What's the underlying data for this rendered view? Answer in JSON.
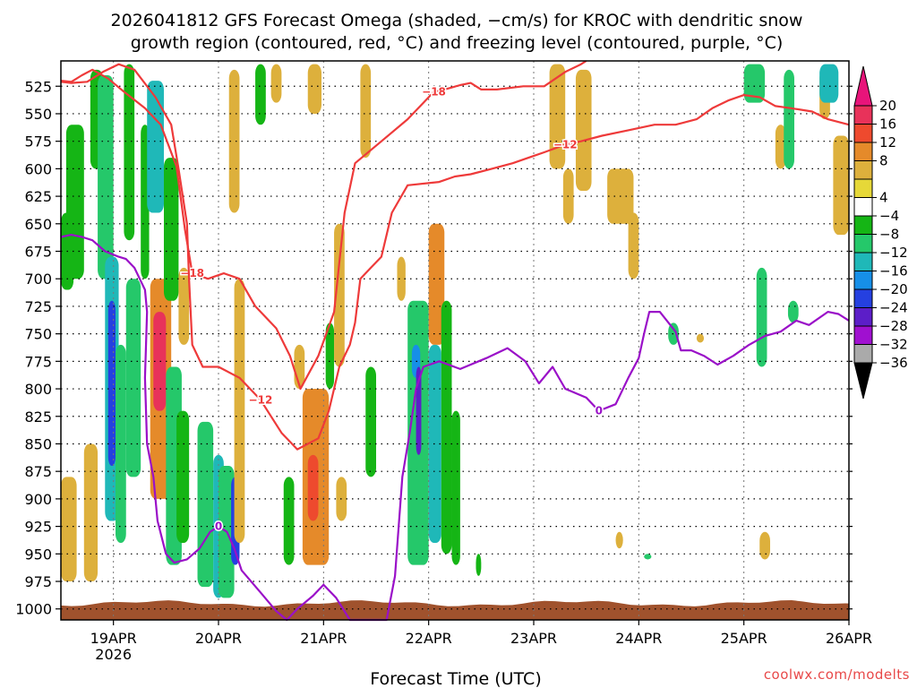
{
  "title": {
    "line1": "2026041812 GFS Forecast Omega (shaded, −cm/s) for KROC with dendritic snow",
    "line2": "growth region (contoured, red, °C) and freezing level (contoured, purple, °C)"
  },
  "watermark": "coolwx.com/modelts",
  "chart_data": {
    "type": "heatmap",
    "xlabel": "Forecast Time (UTC)",
    "x_ticks": [
      {
        "label": "19APR",
        "sub": "2026",
        "day": 19
      },
      {
        "label": "20APR",
        "sub": "",
        "day": 20
      },
      {
        "label": "21APR",
        "sub": "",
        "day": 21
      },
      {
        "label": "22APR",
        "sub": "",
        "day": 22
      },
      {
        "label": "23APR",
        "sub": "",
        "day": 23
      },
      {
        "label": "24APR",
        "sub": "",
        "day": 24
      },
      {
        "label": "25APR",
        "sub": "",
        "day": 25
      },
      {
        "label": "26APR",
        "sub": "",
        "day": 26
      }
    ],
    "xlim_days": [
      18.5,
      26.0
    ],
    "ylim_hPa": [
      1010,
      502
    ],
    "y_ticks": [
      "525",
      "550",
      "575",
      "600",
      "625",
      "650",
      "675",
      "700",
      "725",
      "750",
      "775",
      "800",
      "825",
      "850",
      "875",
      "900",
      "925",
      "950",
      "975",
      "1000"
    ],
    "grid": true,
    "colorbar": {
      "levels": [
        "20",
        "16",
        "12",
        "8",
        "4",
        "−4",
        "−8",
        "−12",
        "−16",
        "−20",
        "−24",
        "−28",
        "−32",
        "−36"
      ],
      "colors": [
        "#e8325a",
        "#ee4a2e",
        "#e58a2a",
        "#ddb03c",
        "#e6d838",
        "#ffffff",
        "#15b515",
        "#25c86a",
        "#1fb8b8",
        "#168fe8",
        "#2540e0",
        "#5c1ec8",
        "#a010d0",
        "#aaaaaa"
      ],
      "top_arrow_color": "#e8147a",
      "bottom_arrow_color": "#000000"
    },
    "contours": [
      {
        "name": "-18",
        "color": "#ee3a3a",
        "label": "−18",
        "points": [
          [
            18.5,
            520
          ],
          [
            18.6,
            521
          ],
          [
            18.7,
            515
          ],
          [
            18.8,
            510
          ],
          [
            18.95,
            518
          ],
          [
            19.1,
            530
          ],
          [
            19.3,
            545
          ],
          [
            19.45,
            560
          ],
          [
            19.6,
            598
          ],
          [
            19.68,
            655
          ],
          [
            19.75,
            695
          ],
          [
            19.9,
            700
          ],
          [
            20.05,
            695
          ],
          [
            20.2,
            700
          ],
          [
            20.35,
            725
          ],
          [
            20.55,
            745
          ],
          [
            20.68,
            770
          ],
          [
            20.78,
            800
          ],
          [
            20.95,
            770
          ],
          [
            21.1,
            730
          ],
          [
            21.2,
            640
          ],
          [
            21.3,
            595
          ],
          [
            21.55,
            575
          ],
          [
            21.8,
            555
          ],
          [
            21.95,
            540
          ],
          [
            22.05,
            530
          ],
          [
            22.15,
            528
          ],
          [
            22.3,
            524
          ],
          [
            22.4,
            522
          ],
          [
            22.5,
            528
          ],
          [
            22.65,
            528
          ],
          [
            22.9,
            525
          ],
          [
            23.1,
            525
          ],
          [
            23.3,
            512
          ],
          [
            23.45,
            505
          ],
          [
            23.5,
            502
          ]
        ]
      },
      {
        "name": "-12",
        "color": "#ee3a3a",
        "label": "−12",
        "points": [
          [
            18.5,
            521
          ],
          [
            18.6,
            522
          ],
          [
            18.75,
            521
          ],
          [
            18.9,
            512
          ],
          [
            19.05,
            505
          ],
          [
            19.2,
            510
          ],
          [
            19.4,
            535
          ],
          [
            19.55,
            560
          ],
          [
            19.62,
            600
          ],
          [
            19.7,
            650
          ],
          [
            19.72,
            700
          ],
          [
            19.75,
            760
          ],
          [
            19.85,
            780
          ],
          [
            20.0,
            780
          ],
          [
            20.2,
            790
          ],
          [
            20.4,
            810
          ],
          [
            20.6,
            840
          ],
          [
            20.75,
            855
          ],
          [
            20.95,
            845
          ],
          [
            21.05,
            820
          ],
          [
            21.15,
            780
          ],
          [
            21.25,
            760
          ],
          [
            21.3,
            740
          ],
          [
            21.35,
            700
          ],
          [
            21.45,
            690
          ],
          [
            21.55,
            680
          ],
          [
            21.65,
            640
          ],
          [
            21.8,
            615
          ],
          [
            22.1,
            612
          ],
          [
            22.25,
            607
          ],
          [
            22.4,
            605
          ],
          [
            22.6,
            600
          ],
          [
            22.8,
            595
          ],
          [
            22.95,
            590
          ],
          [
            23.1,
            585
          ],
          [
            23.3,
            578
          ],
          [
            23.45,
            575
          ],
          [
            23.65,
            570
          ],
          [
            23.9,
            565
          ],
          [
            24.15,
            560
          ],
          [
            24.35,
            560
          ],
          [
            24.55,
            555
          ],
          [
            24.7,
            545
          ],
          [
            24.85,
            538
          ],
          [
            25.0,
            533
          ],
          [
            25.15,
            535
          ],
          [
            25.3,
            543
          ],
          [
            25.45,
            545
          ],
          [
            25.65,
            548
          ],
          [
            25.8,
            555
          ],
          [
            26.0,
            560
          ]
        ]
      },
      {
        "name": "0",
        "color": "#9a10c8",
        "label": "0",
        "points": [
          [
            18.5,
            662
          ],
          [
            18.6,
            660
          ],
          [
            18.7,
            662
          ],
          [
            18.8,
            665
          ],
          [
            18.92,
            675
          ],
          [
            19.05,
            680
          ],
          [
            19.12,
            682
          ],
          [
            19.2,
            690
          ],
          [
            19.25,
            700
          ],
          [
            19.3,
            710
          ],
          [
            19.32,
            730
          ],
          [
            19.3,
            790
          ],
          [
            19.32,
            850
          ],
          [
            19.38,
            880
          ],
          [
            19.42,
            920
          ],
          [
            19.5,
            950
          ],
          [
            19.58,
            958
          ],
          [
            19.7,
            955
          ],
          [
            19.82,
            945
          ],
          [
            19.92,
            930
          ],
          [
            20.0,
            925
          ],
          [
            20.08,
            930
          ],
          [
            20.15,
            945
          ],
          [
            20.22,
            965
          ],
          [
            20.4,
            985
          ],
          [
            20.55,
            1002
          ],
          [
            20.65,
            1010
          ],
          [
            20.75,
            1000
          ],
          [
            20.9,
            988
          ],
          [
            21.0,
            978
          ],
          [
            21.12,
            990
          ],
          [
            21.25,
            1010
          ],
          [
            21.6,
            1010
          ],
          [
            21.68,
            970
          ],
          [
            21.75,
            880
          ],
          [
            21.82,
            840
          ],
          [
            21.88,
            800
          ],
          [
            21.95,
            780
          ],
          [
            22.1,
            775
          ],
          [
            22.3,
            782
          ],
          [
            22.55,
            772
          ],
          [
            22.75,
            763
          ],
          [
            22.92,
            775
          ],
          [
            23.05,
            795
          ],
          [
            23.18,
            780
          ],
          [
            23.3,
            800
          ],
          [
            23.5,
            808
          ],
          [
            23.62,
            820
          ],
          [
            23.78,
            814
          ],
          [
            23.9,
            790
          ],
          [
            24.0,
            772
          ],
          [
            24.05,
            750
          ],
          [
            24.1,
            730
          ],
          [
            24.2,
            730
          ],
          [
            24.35,
            748
          ],
          [
            24.4,
            765
          ],
          [
            24.5,
            765
          ],
          [
            24.62,
            770
          ],
          [
            24.75,
            778
          ],
          [
            24.9,
            770
          ],
          [
            25.05,
            760
          ],
          [
            25.2,
            752
          ],
          [
            25.35,
            748
          ],
          [
            25.5,
            738
          ],
          [
            25.62,
            742
          ],
          [
            25.8,
            730
          ],
          [
            25.9,
            732
          ],
          [
            26.0,
            738
          ]
        ]
      }
    ],
    "omega_patches": [
      {
        "x0": 18.5,
        "x1": 18.65,
        "p0": 880,
        "p1": 975,
        "value": 6
      },
      {
        "x0": 18.5,
        "x1": 18.62,
        "p0": 640,
        "p1": 710,
        "value": -6
      },
      {
        "x0": 18.55,
        "x1": 18.72,
        "p0": 560,
        "p1": 700,
        "value": -7
      },
      {
        "x0": 18.72,
        "x1": 18.85,
        "p0": 850,
        "p1": 975,
        "value": 6
      },
      {
        "x0": 18.78,
        "x1": 18.9,
        "p0": 510,
        "p1": 600,
        "value": -7
      },
      {
        "x0": 18.85,
        "x1": 19.0,
        "p0": 515,
        "p1": 700,
        "value": -10
      },
      {
        "x0": 18.92,
        "x1": 19.05,
        "p0": 680,
        "p1": 920,
        "value": -14
      },
      {
        "x0": 18.95,
        "x1": 19.02,
        "p0": 720,
        "p1": 870,
        "value": -23
      },
      {
        "x0": 19.02,
        "x1": 19.12,
        "p0": 760,
        "p1": 940,
        "value": -10
      },
      {
        "x0": 19.1,
        "x1": 19.2,
        "p0": 505,
        "p1": 665,
        "value": -6
      },
      {
        "x0": 19.12,
        "x1": 19.26,
        "p0": 700,
        "p1": 880,
        "value": -9
      },
      {
        "x0": 19.26,
        "x1": 19.34,
        "p0": 560,
        "p1": 700,
        "value": -6
      },
      {
        "x0": 19.32,
        "x1": 19.48,
        "p0": 520,
        "p1": 640,
        "value": -14
      },
      {
        "x0": 19.35,
        "x1": 19.55,
        "p0": 700,
        "p1": 900,
        "value": 10
      },
      {
        "x0": 19.38,
        "x1": 19.5,
        "p0": 730,
        "p1": 820,
        "value": 18
      },
      {
        "x0": 19.48,
        "x1": 19.62,
        "p0": 590,
        "p1": 720,
        "value": -7
      },
      {
        "x0": 19.5,
        "x1": 19.65,
        "p0": 780,
        "p1": 960,
        "value": -9
      },
      {
        "x0": 19.6,
        "x1": 19.72,
        "p0": 820,
        "p1": 940,
        "value": -6
      },
      {
        "x0": 19.62,
        "x1": 19.72,
        "p0": 690,
        "p1": 760,
        "value": 6
      },
      {
        "x0": 19.8,
        "x1": 19.95,
        "p0": 830,
        "p1": 980,
        "value": -8
      },
      {
        "x0": 19.95,
        "x1": 20.05,
        "p0": 860,
        "p1": 990,
        "value": -12
      },
      {
        "x0": 20.0,
        "x1": 20.15,
        "p0": 870,
        "p1": 990,
        "value": -10
      },
      {
        "x0": 20.12,
        "x1": 20.2,
        "p0": 880,
        "p1": 960,
        "value": -20
      },
      {
        "x0": 20.1,
        "x1": 20.2,
        "p0": 510,
        "p1": 640,
        "value": 6
      },
      {
        "x0": 20.15,
        "x1": 20.25,
        "p0": 700,
        "p1": 940,
        "value": 6
      },
      {
        "x0": 20.35,
        "x1": 20.45,
        "p0": 505,
        "p1": 560,
        "value": -6
      },
      {
        "x0": 20.5,
        "x1": 20.6,
        "p0": 505,
        "p1": 540,
        "value": 6
      },
      {
        "x0": 20.62,
        "x1": 20.72,
        "p0": 880,
        "p1": 960,
        "value": -6
      },
      {
        "x0": 20.72,
        "x1": 20.82,
        "p0": 760,
        "p1": 800,
        "value": 6
      },
      {
        "x0": 20.85,
        "x1": 20.98,
        "p0": 505,
        "p1": 550,
        "value": 6
      },
      {
        "x0": 20.8,
        "x1": 21.05,
        "p0": 800,
        "p1": 960,
        "value": 10
      },
      {
        "x0": 20.85,
        "x1": 20.95,
        "p0": 860,
        "p1": 920,
        "value": 14
      },
      {
        "x0": 21.02,
        "x1": 21.1,
        "p0": 740,
        "p1": 800,
        "value": -6
      },
      {
        "x0": 21.1,
        "x1": 21.2,
        "p0": 650,
        "p1": 780,
        "value": 6
      },
      {
        "x0": 21.12,
        "x1": 21.22,
        "p0": 880,
        "p1": 920,
        "value": 6
      },
      {
        "x0": 21.35,
        "x1": 21.45,
        "p0": 505,
        "p1": 590,
        "value": 6
      },
      {
        "x0": 21.4,
        "x1": 21.5,
        "p0": 780,
        "p1": 880,
        "value": -6
      },
      {
        "x0": 21.7,
        "x1": 21.78,
        "p0": 680,
        "p1": 720,
        "value": 6
      },
      {
        "x0": 21.8,
        "x1": 22.0,
        "p0": 720,
        "p1": 960,
        "value": -10
      },
      {
        "x0": 21.84,
        "x1": 21.92,
        "p0": 760,
        "p1": 790,
        "value": -18
      },
      {
        "x0": 21.88,
        "x1": 21.93,
        "p0": 780,
        "p1": 860,
        "value": -26
      },
      {
        "x0": 22.0,
        "x1": 22.15,
        "p0": 650,
        "p1": 760,
        "value": 10
      },
      {
        "x0": 22.0,
        "x1": 22.12,
        "p0": 760,
        "p1": 940,
        "value": -14
      },
      {
        "x0": 22.12,
        "x1": 22.22,
        "p0": 720,
        "p1": 950,
        "value": -7
      },
      {
        "x0": 22.22,
        "x1": 22.3,
        "p0": 820,
        "p1": 960,
        "value": -6
      },
      {
        "x0": 22.45,
        "x1": 22.5,
        "p0": 950,
        "p1": 970,
        "value": -6
      },
      {
        "x0": 23.15,
        "x1": 23.3,
        "p0": 505,
        "p1": 600,
        "value": 6
      },
      {
        "x0": 23.28,
        "x1": 23.38,
        "p0": 600,
        "p1": 650,
        "value": 6
      },
      {
        "x0": 23.4,
        "x1": 23.55,
        "p0": 510,
        "p1": 620,
        "value": 6
      },
      {
        "x0": 23.7,
        "x1": 23.95,
        "p0": 600,
        "p1": 650,
        "value": 6
      },
      {
        "x0": 23.9,
        "x1": 24.0,
        "p0": 640,
        "p1": 700,
        "value": 6
      },
      {
        "x0": 23.78,
        "x1": 23.85,
        "p0": 930,
        "p1": 945,
        "value": 6
      },
      {
        "x0": 24.05,
        "x1": 24.12,
        "p0": 950,
        "p1": 955,
        "value": -8
      },
      {
        "x0": 24.28,
        "x1": 24.38,
        "p0": 740,
        "p1": 760,
        "value": -8
      },
      {
        "x0": 24.55,
        "x1": 24.62,
        "p0": 750,
        "p1": 758,
        "value": 6
      },
      {
        "x0": 25.0,
        "x1": 25.2,
        "p0": 505,
        "p1": 540,
        "value": -8
      },
      {
        "x0": 25.12,
        "x1": 25.22,
        "p0": 690,
        "p1": 780,
        "value": -8
      },
      {
        "x0": 25.3,
        "x1": 25.4,
        "p0": 560,
        "p1": 600,
        "value": 6
      },
      {
        "x0": 25.38,
        "x1": 25.48,
        "p0": 510,
        "p1": 600,
        "value": -8
      },
      {
        "x0": 25.42,
        "x1": 25.52,
        "p0": 720,
        "p1": 740,
        "value": -8
      },
      {
        "x0": 25.15,
        "x1": 25.25,
        "p0": 930,
        "p1": 955,
        "value": 6
      },
      {
        "x0": 25.72,
        "x1": 25.82,
        "p0": 510,
        "p1": 555,
        "value": 6
      },
      {
        "x0": 25.72,
        "x1": 25.9,
        "p0": 505,
        "p1": 540,
        "value": -12
      },
      {
        "x0": 25.85,
        "x1": 26.0,
        "p0": 570,
        "p1": 660,
        "value": 7
      }
    ],
    "ground_level_hPa": 995
  }
}
